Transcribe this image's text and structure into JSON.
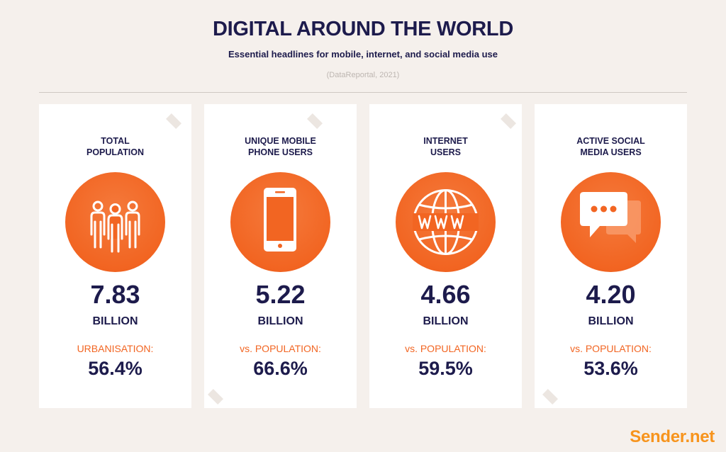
{
  "header": {
    "title": "DIGITAL AROUND THE WORLD",
    "subtitle": "Essential headlines for mobile, internet, and social media use",
    "source": "(DataReportal, 2021)"
  },
  "colors": {
    "accent": "#f26522",
    "navy": "#1d1b4c",
    "background": "#f5f0ec",
    "brand": "#f7941d"
  },
  "cards": [
    {
      "label_line1": "TOTAL",
      "label_line2": "POPULATION",
      "icon": "people-icon",
      "value": "7.83",
      "unit": "BILLION",
      "compare_label": "URBANISATION:",
      "percent": "56.4%"
    },
    {
      "label_line1": "UNIQUE MOBILE",
      "label_line2": "PHONE USERS",
      "icon": "mobile-phone-icon",
      "value": "5.22",
      "unit": "BILLION",
      "compare_label": "vs. POPULATION:",
      "percent": "66.6%"
    },
    {
      "label_line1": "INTERNET",
      "label_line2": "USERS",
      "icon": "globe-www-icon",
      "value": "4.66",
      "unit": "BILLION",
      "compare_label": "vs. POPULATION:",
      "percent": "59.5%"
    },
    {
      "label_line1": "ACTIVE SOCIAL",
      "label_line2": "MEDIA USERS",
      "icon": "chat-bubble-icon",
      "value": "4.20",
      "unit": "BILLION",
      "compare_label": "vs. POPULATION:",
      "percent": "53.6%"
    }
  ],
  "footer": {
    "brand": "Sender.net"
  }
}
